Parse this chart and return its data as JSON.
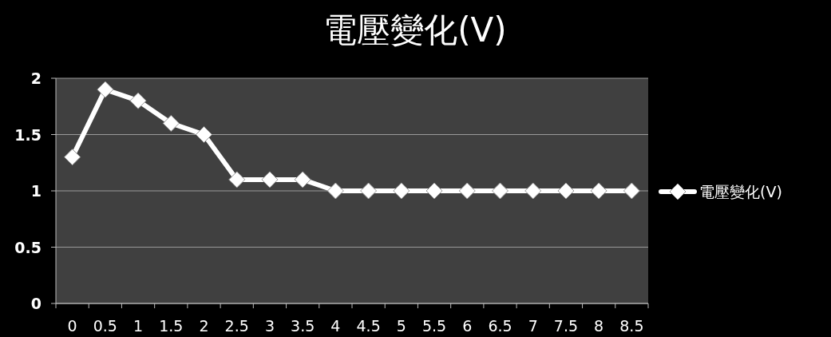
{
  "chart_data": {
    "type": "line",
    "title": "電壓變化(V)",
    "categories": [
      "0",
      "0.5",
      "1",
      "1.5",
      "2",
      "2.5",
      "3",
      "3.5",
      "4",
      "4.5",
      "5",
      "5.5",
      "6",
      "6.5",
      "7",
      "7.5",
      "8",
      "8.5"
    ],
    "series": [
      {
        "name": "電壓變化(V)",
        "color": "#ffffff",
        "values": [
          1.3,
          1.9,
          1.8,
          1.6,
          1.5,
          1.1,
          1.1,
          1.1,
          1.0,
          1.0,
          1.0,
          1.0,
          1.0,
          1.0,
          1.0,
          1.0,
          1.0,
          1.0
        ]
      }
    ],
    "ylim": [
      0,
      2
    ],
    "yticks": [
      0,
      0.5,
      1,
      1.5,
      2
    ],
    "grid": "y",
    "legend": "right",
    "marker": "diamond",
    "line_style": "solid"
  }
}
